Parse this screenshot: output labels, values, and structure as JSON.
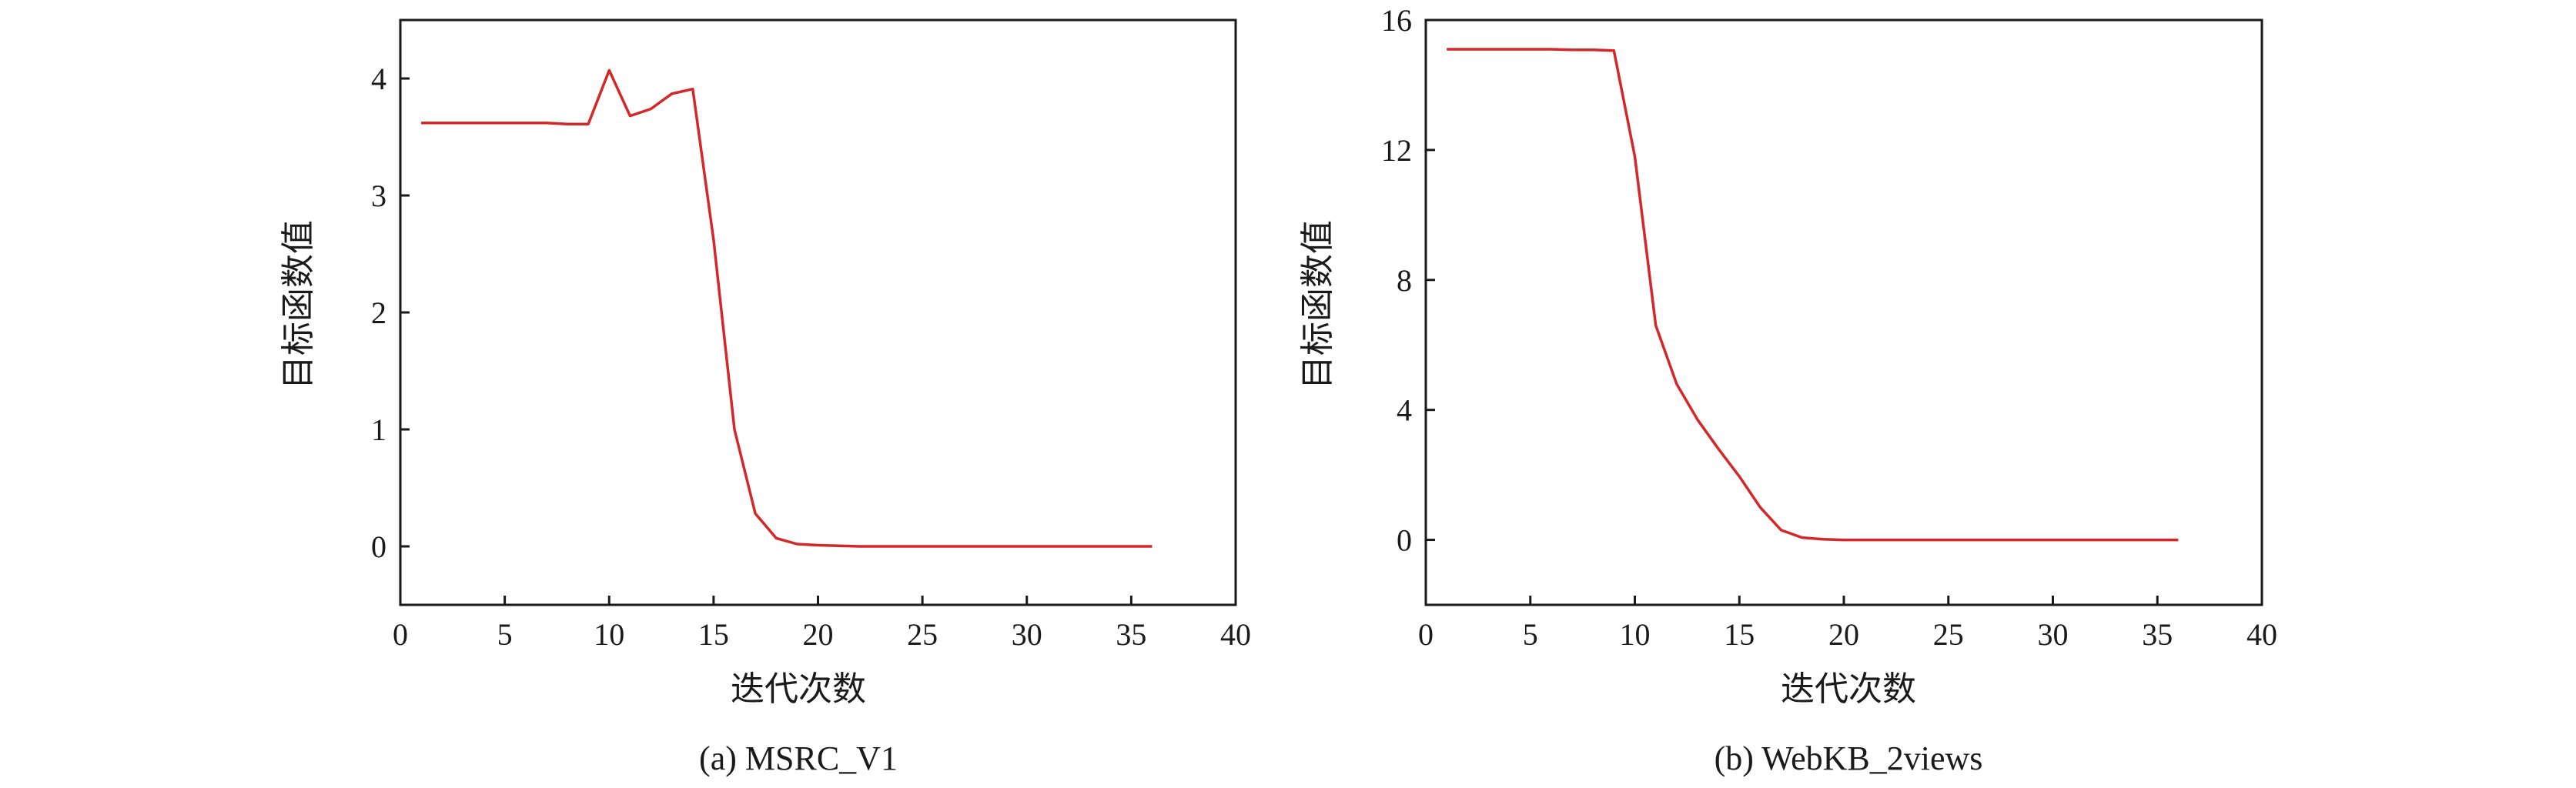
{
  "colors": {
    "series": "#d62728",
    "axis": "#1a1a1a"
  },
  "chart_data": [
    {
      "type": "line",
      "caption": "(a)  MSRC_V1",
      "xlabel": "迭代次数",
      "ylabel": "目标函数值",
      "xlim": [
        0,
        40
      ],
      "ylim": [
        -0.5,
        4.5
      ],
      "xticks": [
        0,
        5,
        10,
        15,
        20,
        25,
        30,
        35,
        40
      ],
      "yticks": [
        0,
        1,
        2,
        3,
        4
      ],
      "grid": false,
      "series": [
        {
          "x": [
            1,
            2,
            3,
            4,
            5,
            6,
            7,
            8,
            9,
            10,
            11,
            12,
            13,
            14,
            15,
            16,
            17,
            18,
            19,
            20,
            21,
            22,
            23,
            24,
            25,
            26,
            27,
            28,
            29,
            30,
            31,
            32,
            33,
            34,
            35,
            36
          ],
          "y": [
            3.62,
            3.62,
            3.62,
            3.62,
            3.62,
            3.62,
            3.62,
            3.61,
            3.61,
            4.07,
            3.68,
            3.74,
            3.87,
            3.91,
            2.62,
            1.0,
            0.28,
            0.07,
            0.02,
            0.01,
            0.005,
            0.0,
            0.0,
            0.0,
            0.0,
            0.0,
            0.0,
            0.0,
            0.0,
            0.0,
            0.0,
            0.0,
            0.0,
            0.0,
            0.0,
            0.0
          ]
        }
      ]
    },
    {
      "type": "line",
      "caption": "(b)  WebKB_2views",
      "xlabel": "迭代次数",
      "ylabel": "目标函数值",
      "xlim": [
        0,
        40
      ],
      "ylim": [
        -2,
        16
      ],
      "xticks": [
        0,
        5,
        10,
        15,
        20,
        25,
        30,
        35,
        40
      ],
      "yticks": [
        0,
        4,
        8,
        12,
        16
      ],
      "grid": false,
      "series": [
        {
          "x": [
            1,
            2,
            3,
            4,
            5,
            6,
            7,
            8,
            9,
            10,
            11,
            12,
            13,
            14,
            15,
            16,
            17,
            18,
            19,
            20,
            21,
            22,
            23,
            24,
            25,
            26,
            27,
            28,
            29,
            30,
            31,
            32,
            33,
            34,
            35,
            36
          ],
          "y": [
            15.1,
            15.1,
            15.1,
            15.1,
            15.1,
            15.1,
            15.08,
            15.08,
            15.06,
            11.8,
            6.6,
            4.8,
            3.7,
            2.8,
            1.95,
            1.0,
            0.3,
            0.07,
            0.02,
            0.0,
            0.0,
            0.0,
            0.0,
            0.0,
            0.0,
            0.0,
            0.0,
            0.0,
            0.0,
            0.0,
            0.0,
            0.0,
            0.0,
            0.0,
            0.0,
            0.0
          ]
        }
      ]
    }
  ]
}
